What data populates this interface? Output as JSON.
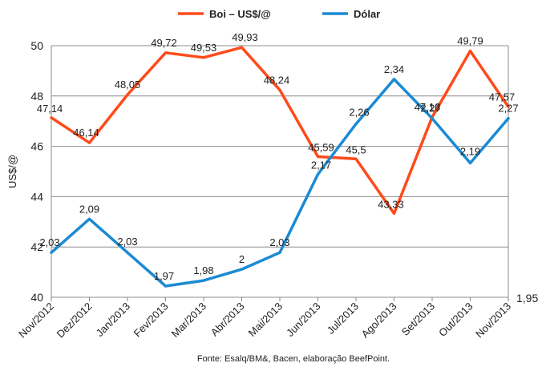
{
  "chart_data": {
    "type": "line",
    "categories": [
      "Nov/2012",
      "Dez/2012",
      "Jan/2013",
      "Fev/2013",
      "Mar/2013",
      "Abr/2013",
      "Mai/2013",
      "Jun/2013",
      "Jul/2013",
      "Ago/2013",
      "Set/2013",
      "Out/2013",
      "Nov/2013"
    ],
    "series": [
      {
        "name": "Boi – US$/@",
        "axis": "left",
        "color": "#ff4a1a",
        "values": [
          47.14,
          46.14,
          48.05,
          49.72,
          49.53,
          49.93,
          48.24,
          45.59,
          45.5,
          43.33,
          47.16,
          49.79,
          47.57
        ],
        "labels": [
          "47,14",
          "46,14",
          "48,05",
          "49,72",
          "49,53",
          "49,93",
          "48,24",
          "45,59",
          "45,5",
          "43,33",
          "47,16",
          "49,79",
          "47,57"
        ]
      },
      {
        "name": "Dólar",
        "axis": "right",
        "color": "#1a8ad4",
        "values": [
          2.03,
          2.09,
          2.03,
          1.97,
          1.98,
          2.0,
          2.03,
          2.17,
          2.26,
          2.34,
          2.27,
          2.19,
          2.27
        ],
        "labels": [
          "2,03",
          "2,09",
          "2,03",
          "1,97",
          "1,98",
          "2",
          "2,03",
          "2,17",
          "2,26",
          "2,34",
          "2,27",
          "2,19",
          "2,27"
        ]
      }
    ],
    "ylabel": "US$/@",
    "ylim": [
      40,
      50
    ],
    "yticks": [
      "40",
      "42",
      "44",
      "46",
      "48",
      "50"
    ],
    "y2_visible_tick": "1,95",
    "grid": true,
    "legend_position": "top-center",
    "source_note": "Fonte: Esalq/BM&, Bacen, elaboração BeefPoint."
  }
}
